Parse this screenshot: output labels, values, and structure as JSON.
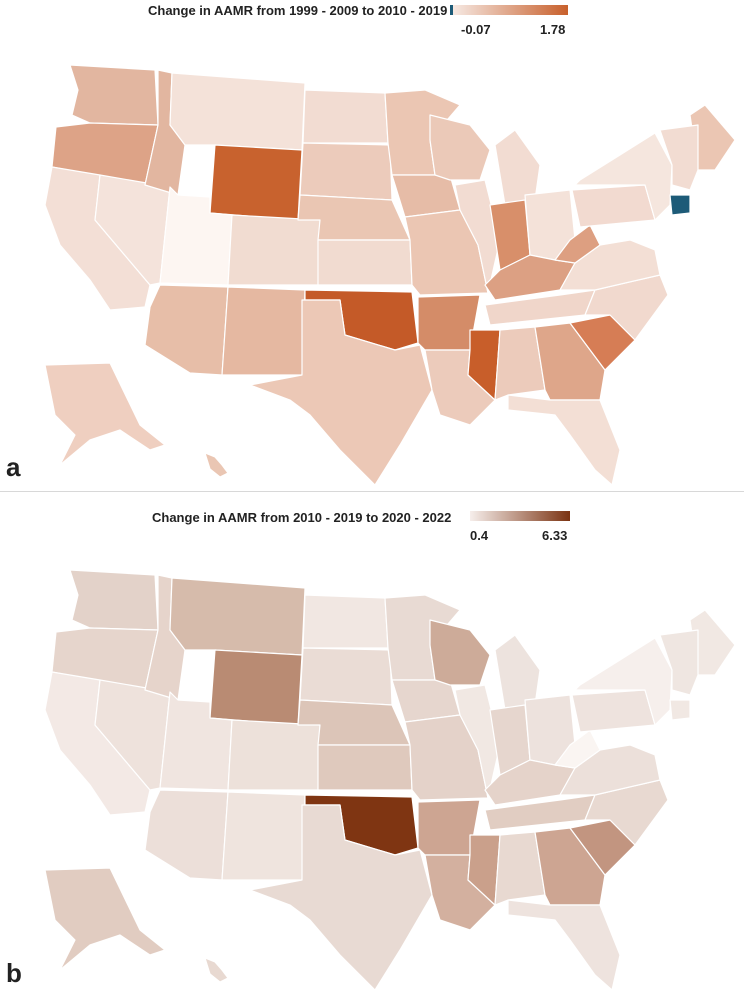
{
  "panel_a": {
    "letter": "a",
    "legend": {
      "title": "Change in AAMR from 1999 - 2009 to 2010 - 2019",
      "min_label": "-0.07",
      "max_label": "1.78",
      "low_color": "#f7ece7",
      "high_color": "#c8602c",
      "negative_color": "#1d5b78"
    },
    "fills": {
      "WA": "#e2b6a0",
      "OR": "#dda387",
      "CA": "#f3dfd6",
      "NV": "#f4e3db",
      "ID": "#e2b6a0",
      "MT": "#f4e2d9",
      "WY": "#c8622e",
      "UT": "#fdf6f2",
      "AZ": "#e7bea8",
      "CO": "#f1dcd1",
      "NM": "#e5b8a1",
      "ND": "#f2dcd2",
      "SD": "#eccbbb",
      "NE": "#eac6b3",
      "KS": "#f1dbd0",
      "OK": "#c45a28",
      "TX": "#ecc8b6",
      "MN": "#ebc6b3",
      "IA": "#e6bca7",
      "MO": "#ebc6b3",
      "AR": "#d48c68",
      "LA": "#eccbbb",
      "WI": "#ebc9b8",
      "IL": "#f2dcd2",
      "MI": "#f2dcd2",
      "IN": "#d88f6a",
      "OH": "#f4e2d9",
      "KY": "#dca083",
      "TN": "#f0d6ca",
      "MS": "#c85e2a",
      "AL": "#eccbbb",
      "GA": "#dea68a",
      "FL": "#f3dfd5",
      "SC": "#d67d55",
      "NC": "#f1d9ce",
      "VA": "#f3dfd5",
      "WV": "#dd9f81",
      "PA": "#f2dad0",
      "NY": "#f5e6de",
      "ME": "#ebc6b3",
      "NE_REGION": "#f2dcd2",
      "CT": "#1d5b78",
      "AK": "#efcfc0",
      "HI": "#eac6b3"
    }
  },
  "panel_b": {
    "letter": "b",
    "legend": {
      "title": "Change in AAMR from 2010 - 2019 to 2020 - 2022",
      "min_label": "0.4",
      "max_label": "6.33",
      "low_color": "#f6eeeb",
      "high_color": "#7b3312"
    },
    "fills": {
      "WA": "#e3d2c9",
      "OR": "#e6d5cc",
      "CA": "#f3e9e5",
      "NV": "#eee2dc",
      "ID": "#e6d4cb",
      "MT": "#d6bbab",
      "WY": "#b98b73",
      "UT": "#f0e5e0",
      "AZ": "#ecdfd9",
      "CO": "#ede1da",
      "NM": "#efe4de",
      "ND": "#f1e7e2",
      "SD": "#eadcd5",
      "NE": "#dcc5b8",
      "KS": "#dfc9bd",
      "OK": "#7f3512",
      "TX": "#e8dad3",
      "MN": "#e8dad3",
      "IA": "#e6d6ce",
      "MO": "#e4d2c9",
      "AR": "#cda592",
      "LA": "#d3b09f",
      "WI": "#cdab99",
      "IL": "#f1e8e3",
      "MI": "#ede3de",
      "IN": "#e6d6ce",
      "OH": "#ede2dd",
      "KY": "#e5d3ca",
      "TN": "#e1cdc2",
      "MS": "#caa08b",
      "AL": "#e8d9d1",
      "GA": "#cda592",
      "FL": "#eee3de",
      "SC": "#c29580",
      "NC": "#e8d9d1",
      "VA": "#ece0da",
      "WV": "#faf5f2",
      "PA": "#eee3de",
      "NY": "#f6efec",
      "ME": "#f1e8e3",
      "NE_REGION": "#efe6e1",
      "CT": "#f1e8e3",
      "AK": "#e1ccc1",
      "HI": "#e8d9d1"
    }
  }
}
